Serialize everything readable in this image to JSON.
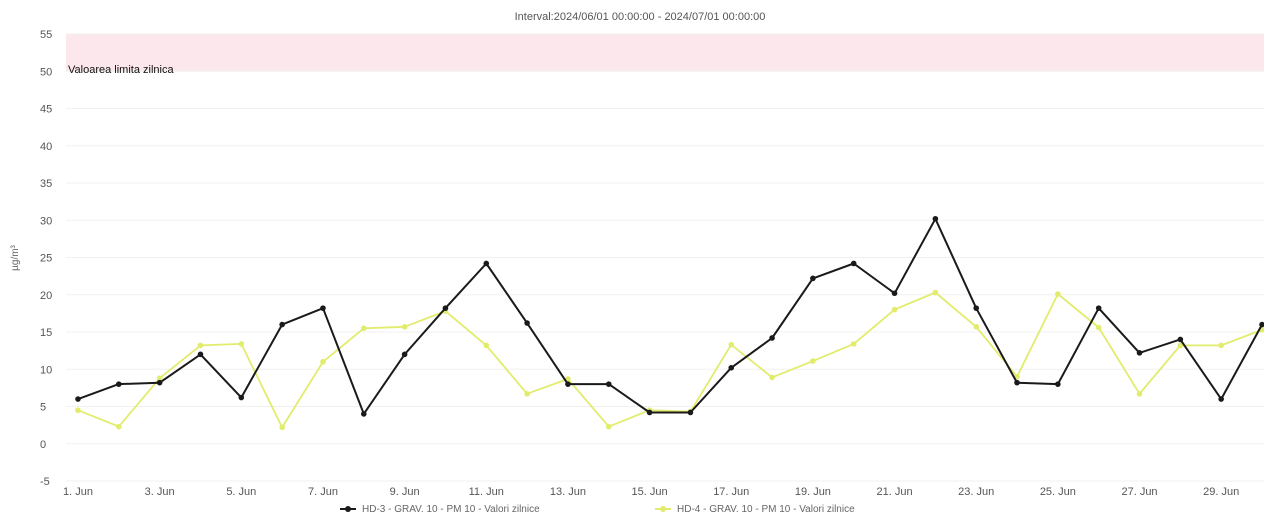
{
  "chart_data": {
    "type": "line",
    "title": "Interval:2024/06/01 00:00:00 - 2024/07/01 00:00:00",
    "ylabel": "µg/m³",
    "ylim": [
      -5,
      55
    ],
    "yticks": [
      -5,
      0,
      5,
      10,
      15,
      20,
      25,
      30,
      35,
      40,
      45,
      50,
      55
    ],
    "x": [
      "1. Jun",
      "2. Jun",
      "3. Jun",
      "4. Jun",
      "5. Jun",
      "6. Jun",
      "7. Jun",
      "8. Jun",
      "9. Jun",
      "10. Jun",
      "11. Jun",
      "12. Jun",
      "13. Jun",
      "14. Jun",
      "15. Jun",
      "16. Jun",
      "17. Jun",
      "18. Jun",
      "19. Jun",
      "20. Jun",
      "21. Jun",
      "22. Jun",
      "23. Jun",
      "24. Jun",
      "25. Jun",
      "26. Jun",
      "27. Jun",
      "28. Jun",
      "29. Jun",
      "30. Jun"
    ],
    "xtick_labels": [
      "1. Jun",
      "3. Jun",
      "5. Jun",
      "7. Jun",
      "9. Jun",
      "11. Jun",
      "13. Jun",
      "15. Jun",
      "17. Jun",
      "19. Jun",
      "21. Jun",
      "23. Jun",
      "25. Jun",
      "27. Jun",
      "29. Jun"
    ],
    "limit_band": {
      "from": 50,
      "to": 55,
      "label": "Valoarea limita zilnica",
      "color": "#fce8ec"
    },
    "grid": true,
    "legend_position": "bottom",
    "series": [
      {
        "name": "HD-3 - GRAV. 10 - PM 10 - Valori zilnice",
        "color": "#1a1a1a",
        "values": [
          6,
          8,
          8.2,
          12,
          6.2,
          16,
          18.2,
          4,
          12,
          18.2,
          24.2,
          16.2,
          8,
          8,
          4.2,
          4.2,
          10.2,
          14.2,
          22.2,
          24.2,
          20.2,
          30.2,
          18.2,
          8.2,
          8,
          18.2,
          12.2,
          14,
          6,
          16
        ]
      },
      {
        "name": "HD-4 - GRAV. 10 - PM 10 - Valori zilnice",
        "color": "#e2ec6c",
        "values": [
          4.5,
          2.3,
          8.8,
          13.2,
          13.4,
          2.2,
          11,
          15.5,
          15.7,
          17.8,
          13.2,
          6.7,
          8.7,
          2.3,
          4.5,
          4.3,
          13.3,
          8.9,
          11.1,
          13.4,
          18,
          20.3,
          15.7,
          9,
          20.1,
          15.6,
          6.7,
          13.2,
          13.2,
          15.3
        ]
      }
    ]
  }
}
